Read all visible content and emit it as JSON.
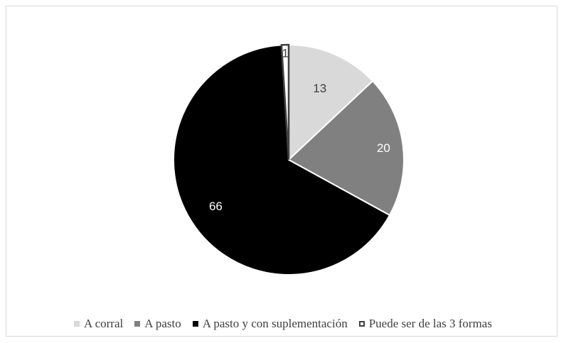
{
  "chart_data": {
    "type": "pie",
    "title": "",
    "categories": [
      "A corral",
      "A pasto",
      "A pasto y con suplementación",
      "Puede ser de las 3 formas"
    ],
    "values": [
      13,
      20,
      66,
      1
    ],
    "colors": [
      "#d9d9d9",
      "#808080",
      "#000000",
      "#ffffff"
    ],
    "outline": [
      "#ffffff",
      "#ffffff",
      "#ffffff",
      "#404040"
    ],
    "label_colors": [
      "#404040",
      "#ffffff",
      "#ffffff",
      "#404040"
    ],
    "start_angle_deg": 0,
    "direction": "clockwise",
    "legend_position": "bottom"
  }
}
